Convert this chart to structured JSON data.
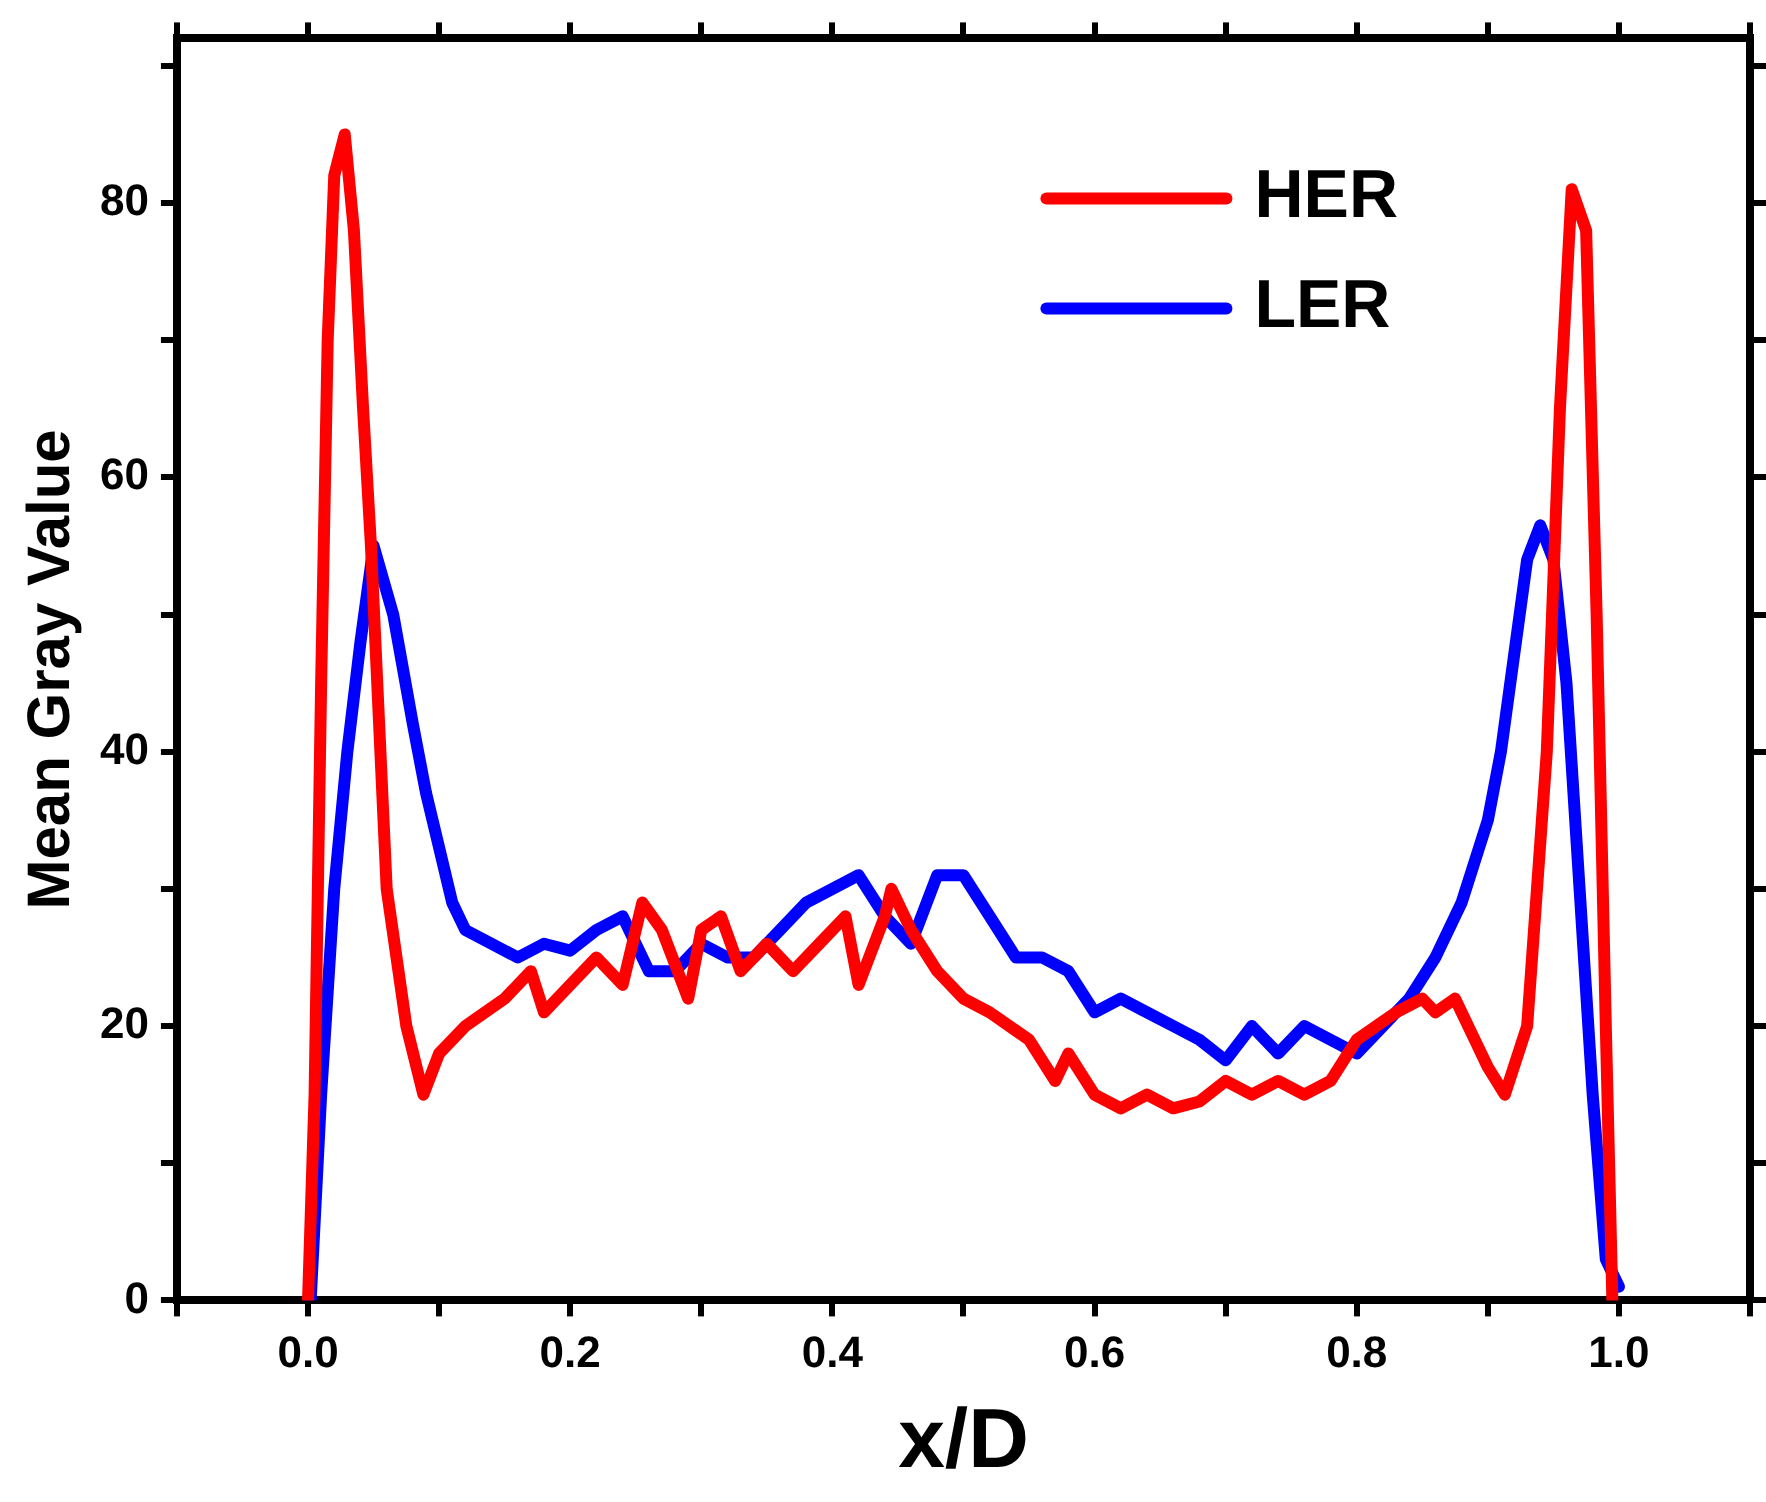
{
  "chart_data": {
    "type": "line",
    "xlabel": "x/D",
    "ylabel": "Mean Gray Value",
    "xlim": [
      -0.1,
      1.1
    ],
    "xticks": [
      {
        "value": 0,
        "label": "0.0"
      },
      0.2,
      0.4,
      0.6,
      0.8,
      {
        "value": 1,
        "label": "1.0"
      }
    ],
    "ylim": [
      0,
      92
    ],
    "yticks": [
      0,
      20,
      40,
      60,
      80
    ],
    "grid": false,
    "legend": "top right",
    "marker": "none",
    "line_style": "solid",
    "series": [
      {
        "name": "HER",
        "color": "#ff0000",
        "x": [
          0,
          0.005,
          0.01,
          0.015,
          0.02,
          0.028,
          0.035,
          0.042,
          0.048,
          0.06,
          0.075,
          0.088,
          0.1,
          0.12,
          0.15,
          0.17,
          0.18,
          0.2,
          0.22,
          0.24,
          0.255,
          0.27,
          0.29,
          0.3,
          0.315,
          0.33,
          0.35,
          0.37,
          0.39,
          0.41,
          0.42,
          0.44,
          0.445,
          0.46,
          0.48,
          0.5,
          0.52,
          0.55,
          0.57,
          0.58,
          0.6,
          0.62,
          0.64,
          0.66,
          0.68,
          0.7,
          0.72,
          0.74,
          0.76,
          0.78,
          0.8,
          0.83,
          0.85,
          0.86,
          0.875,
          0.89,
          0.9,
          0.913,
          0.93,
          0.945,
          0.955,
          0.964,
          0.975,
          0.983,
          0.99,
          0.995
        ],
        "values": [
          0,
          15,
          45,
          70,
          82,
          85,
          78,
          65,
          55,
          30,
          20,
          15,
          18,
          20,
          22,
          24,
          21,
          23,
          25,
          23,
          29,
          27,
          22,
          27,
          28,
          24,
          26,
          24,
          26,
          28,
          23,
          28,
          30,
          27,
          24,
          22,
          21,
          19,
          16,
          18,
          15,
          14,
          15,
          14,
          14.5,
          16,
          15,
          16,
          15,
          16,
          19,
          21,
          22,
          21,
          22,
          19,
          17,
          15,
          20,
          40,
          65,
          81,
          78,
          50,
          20,
          0
        ]
      },
      {
        "name": "LER",
        "color": "#0000ff",
        "x": [
          0.002,
          0.01,
          0.02,
          0.03,
          0.04,
          0.05,
          0.065,
          0.08,
          0.09,
          0.1,
          0.11,
          0.12,
          0.14,
          0.16,
          0.18,
          0.2,
          0.22,
          0.24,
          0.26,
          0.28,
          0.3,
          0.32,
          0.34,
          0.36,
          0.38,
          0.4,
          0.42,
          0.44,
          0.46,
          0.48,
          0.5,
          0.52,
          0.54,
          0.56,
          0.58,
          0.6,
          0.62,
          0.64,
          0.66,
          0.68,
          0.7,
          0.72,
          0.74,
          0.76,
          0.78,
          0.8,
          0.82,
          0.84,
          0.86,
          0.88,
          0.9,
          0.91,
          0.92,
          0.93,
          0.94,
          0.95,
          0.96,
          0.97,
          0.98,
          0.99,
          1.0
        ],
        "values": [
          0,
          15,
          30,
          40,
          48,
          55,
          50,
          42,
          37,
          33,
          29,
          27,
          26,
          25,
          26,
          25.5,
          27,
          28,
          24,
          24,
          26,
          25,
          25,
          27,
          29,
          30,
          31,
          28,
          26,
          31,
          31,
          28,
          25,
          25,
          24,
          21,
          22,
          21,
          20,
          19,
          17.5,
          20,
          18,
          20,
          19,
          18,
          20,
          22,
          25,
          29,
          35,
          40,
          47,
          54,
          56.5,
          54,
          45,
          30,
          15,
          3,
          1
        ]
      }
    ]
  }
}
